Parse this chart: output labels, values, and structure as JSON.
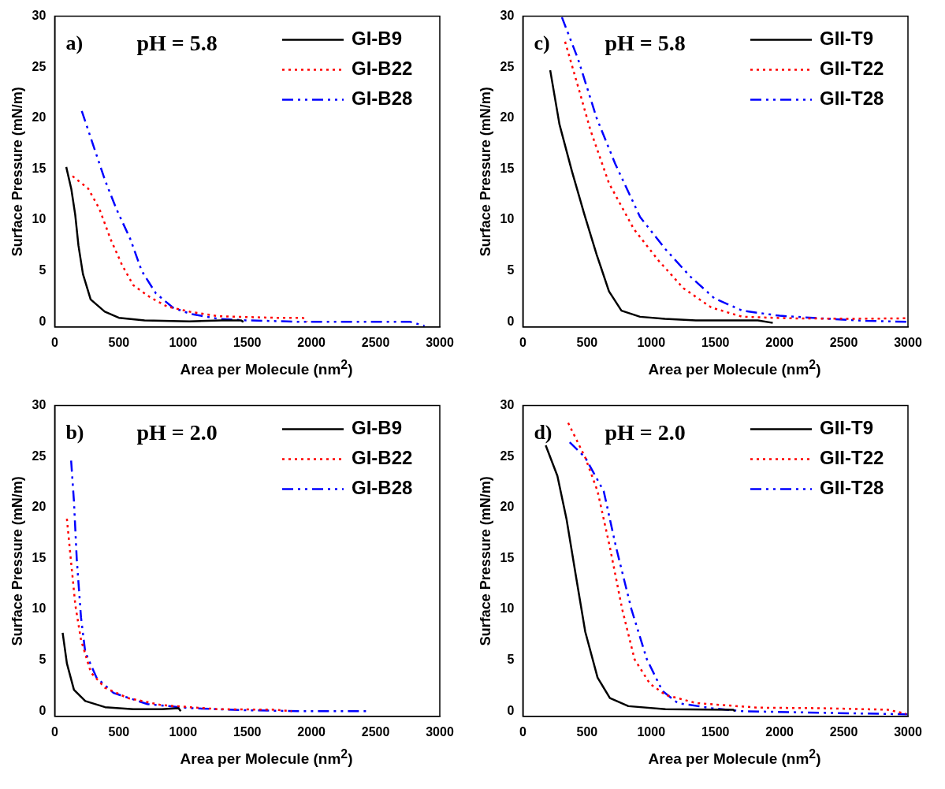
{
  "chart_data": [
    {
      "type": "line",
      "annotations": [
        "a)",
        "pH = 5.8"
      ],
      "xlabel": "Area per Molecule (nm$^{2}$)",
      "ylabel": "Surface Pressure (mN/m)",
      "xlim": [
        0,
        3000
      ],
      "ylim": [
        -0.5,
        30
      ],
      "xticks": [
        0,
        500,
        1000,
        1500,
        2000,
        2500,
        3000
      ],
      "yticks": [
        0,
        5,
        10,
        15,
        20,
        25,
        30
      ],
      "grid": false,
      "legend": "top right",
      "marker": "none",
      "series": [
        {
          "name": "GI-B9",
          "color": "#000000",
          "line_style": "solid",
          "x": [
            90,
            130,
            160,
            185,
            220,
            280,
            390,
            500,
            700,
            1050,
            1300,
            1450,
            1470
          ],
          "values": [
            15.2,
            13,
            10.5,
            7.5,
            4.7,
            2.2,
            1.0,
            0.4,
            0.15,
            0.05,
            0.15,
            0.15,
            0
          ]
        },
        {
          "name": "GI-B22",
          "color": "#ff0000",
          "line_style": "dotted",
          "x": [
            139,
            260,
            348,
            436,
            524,
            612,
            744,
            877,
            1053,
            1273,
            1714,
            1934,
            1967
          ],
          "values": [
            14.3,
            13.1,
            11.1,
            8.1,
            5.6,
            3.6,
            2.4,
            1.5,
            1.0,
            0.55,
            0.4,
            0.4,
            0
          ]
        },
        {
          "name": "GI-B28",
          "color": "#0000ff",
          "line_style": "dashed",
          "x": [
            211,
            304,
            392,
            480,
            590,
            678,
            788,
            921,
            1053,
            1273,
            1493,
            1934,
            2374,
            2771,
            2881
          ],
          "values": [
            20.7,
            17.2,
            13.9,
            11.1,
            8.1,
            5.0,
            2.8,
            1.4,
            0.8,
            0.3,
            0.15,
            0,
            0,
            0,
            -0.4
          ]
        }
      ]
    },
    {
      "type": "line",
      "annotations": [
        "c)",
        "pH = 5.8"
      ],
      "xlabel": "Area per Molecule (nm$^{2}$)",
      "ylabel": "Surface Pressure (mN/m)",
      "xlim": [
        0,
        3000
      ],
      "ylim": [
        -0.5,
        30
      ],
      "xticks": [
        0,
        500,
        1000,
        1500,
        2000,
        2500,
        3000
      ],
      "yticks": [
        0,
        5,
        10,
        15,
        20,
        25,
        30
      ],
      "grid": false,
      "legend": "top right",
      "marker": "none",
      "series": [
        {
          "name": "GII-T9",
          "color": "#000000",
          "line_style": "solid",
          "x": [
            213,
            285,
            382,
            478,
            575,
            671,
            768,
            913,
            1106,
            1348,
            1831,
            1947
          ],
          "values": [
            24.7,
            19.4,
            14.8,
            10.6,
            6.6,
            3.0,
            1.1,
            0.5,
            0.3,
            0.15,
            0.15,
            -0.1
          ]
        },
        {
          "name": "GII-T22",
          "color": "#ff0000",
          "line_style": "dotted",
          "x": [
            329,
            430,
            527,
            671,
            865,
            1058,
            1251,
            1469,
            1710,
            2072,
            2556,
            3000
          ],
          "values": [
            27.5,
            23.1,
            18.8,
            13.6,
            9.1,
            6.0,
            3.3,
            1.4,
            0.5,
            0.35,
            0.3,
            0.35
          ]
        },
        {
          "name": "GII-T28",
          "color": "#0000ff",
          "line_style": "dashed",
          "x": [
            304,
            430,
            575,
            720,
            913,
            1106,
            1300,
            1493,
            1710,
            2000,
            2314,
            2676,
            3000
          ],
          "values": [
            29.9,
            25.8,
            20.0,
            15.5,
            10.3,
            7.2,
            4.5,
            2.3,
            1.1,
            0.6,
            0.35,
            0.1,
            0
          ]
        }
      ]
    },
    {
      "type": "line",
      "annotations": [
        "b)",
        "pH = 2.0"
      ],
      "xlabel": "Area per Molecule (nm$^{2}$)",
      "ylabel": "Surface Pressure (mN/m)",
      "xlim": [
        0,
        3000
      ],
      "ylim": [
        -0.5,
        30
      ],
      "xticks": [
        0,
        500,
        1000,
        1500,
        2000,
        2500,
        3000
      ],
      "yticks": [
        0,
        5,
        10,
        15,
        20,
        25,
        30
      ],
      "grid": false,
      "legend": "top right",
      "marker": "none",
      "series": [
        {
          "name": "GI-B9",
          "color": "#000000",
          "line_style": "solid",
          "x": [
            62,
            95,
            150,
            238,
            392,
            612,
            833,
            965,
            982
          ],
          "values": [
            7.7,
            4.7,
            2.1,
            1.0,
            0.4,
            0.2,
            0.2,
            0.3,
            0
          ]
        },
        {
          "name": "GI-B22",
          "color": "#ff0000",
          "line_style": "dotted",
          "x": [
            95,
            128,
            161,
            205,
            282,
            392,
            568,
            833,
            1273,
            1714,
            1846
          ],
          "values": [
            18.9,
            14.6,
            10.4,
            7.0,
            3.8,
            2.3,
            1.3,
            0.6,
            0.2,
            0.15,
            0
          ]
        },
        {
          "name": "GI-B28",
          "color": "#0000ff",
          "line_style": "dashed",
          "x": [
            128,
            150,
            172,
            205,
            238,
            326,
            458,
            722,
            1053,
            1493,
            1934,
            2430
          ],
          "values": [
            24.6,
            20.6,
            14.9,
            9.2,
            5.8,
            3.3,
            1.8,
            0.7,
            0.3,
            0.1,
            0,
            0
          ]
        }
      ]
    },
    {
      "type": "line",
      "annotations": [
        "d)",
        "pH = 2.0"
      ],
      "xlabel": "Area per Molecule (nm$^{2}$)",
      "ylabel": "Surface Pressure (mN/m)",
      "xlim": [
        0,
        3000
      ],
      "ylim": [
        -0.5,
        30
      ],
      "xticks": [
        0,
        500,
        1000,
        1500,
        2000,
        2500,
        3000
      ],
      "yticks": [
        0,
        5,
        10,
        15,
        20,
        25,
        30
      ],
      "grid": false,
      "legend": "top right",
      "marker": "none",
      "series": [
        {
          "name": "GII-T9",
          "color": "#000000",
          "line_style": "solid",
          "x": [
            178,
            269,
            341,
            413,
            486,
            582,
            678,
            822,
            1111,
            1639,
            1651
          ],
          "values": [
            26.1,
            23.1,
            18.8,
            13.3,
            7.8,
            3.3,
            1.3,
            0.5,
            0.2,
            0.15,
            0
          ]
        },
        {
          "name": "GII-T22",
          "color": "#ff0000",
          "line_style": "dotted",
          "x": [
            353,
            486,
            582,
            678,
            774,
            870,
            990,
            1111,
            1351,
            1832,
            2312,
            2841,
            2986
          ],
          "values": [
            28.3,
            24.9,
            21.6,
            16.1,
            10.0,
            5.1,
            2.7,
            1.6,
            0.8,
            0.35,
            0.3,
            0.15,
            -0.25
          ]
        },
        {
          "name": "GII-T28",
          "color": "#0000ff",
          "line_style": "dashed",
          "x": [
            365,
            486,
            630,
            726,
            846,
            966,
            1087,
            1207,
            1471,
            1712,
            2312,
            2995
          ],
          "values": [
            26.4,
            24.9,
            21.6,
            16.1,
            10.0,
            5.1,
            2.0,
            0.8,
            0.3,
            0,
            -0.15,
            -0.3
          ]
        }
      ]
    }
  ]
}
